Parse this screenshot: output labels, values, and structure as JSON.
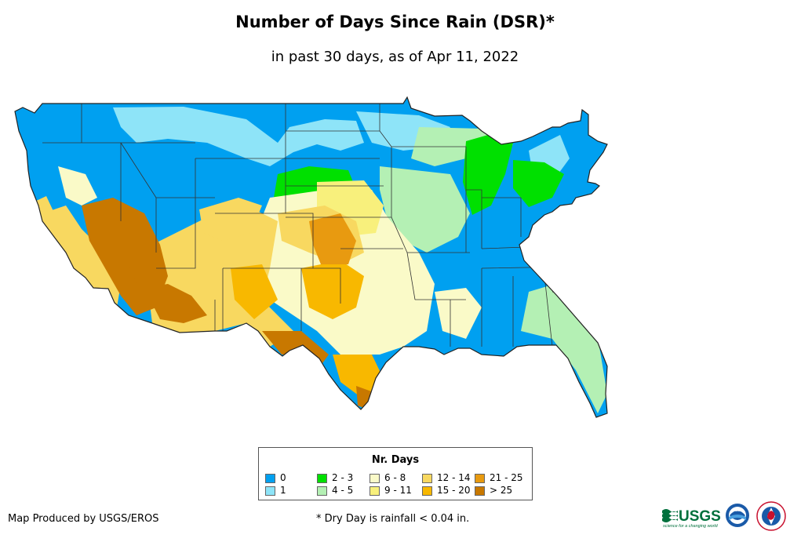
{
  "title": "Number of Days Since Rain (DSR)*",
  "subtitle": "in past 30 days, as of Apr 11, 2022",
  "legend": {
    "title": "Nr. Days",
    "items": [
      {
        "label": "0",
        "color": "#00a0f0"
      },
      {
        "label": "1",
        "color": "#8ee4f8"
      },
      {
        "label": "2 - 3",
        "color": "#00e000"
      },
      {
        "label": "4 - 5",
        "color": "#b4f0b4"
      },
      {
        "label": "6 - 8",
        "color": "#fafac8"
      },
      {
        "label": "9 - 11",
        "color": "#f8f07c"
      },
      {
        "label": "12 - 14",
        "color": "#f8d860"
      },
      {
        "label": "15 - 20",
        "color": "#f8b800"
      },
      {
        "label": "21 - 25",
        "color": "#e89a10"
      },
      {
        "label": "> 25",
        "color": "#c87800"
      }
    ]
  },
  "producer": "Map Produced by USGS/EROS",
  "footnote": "* Dry Day is rainfall < 0.04 in.",
  "logos": {
    "usgs": "USGS",
    "usgs_tagline": "science for a changing world",
    "noaa": "NOAA"
  }
}
